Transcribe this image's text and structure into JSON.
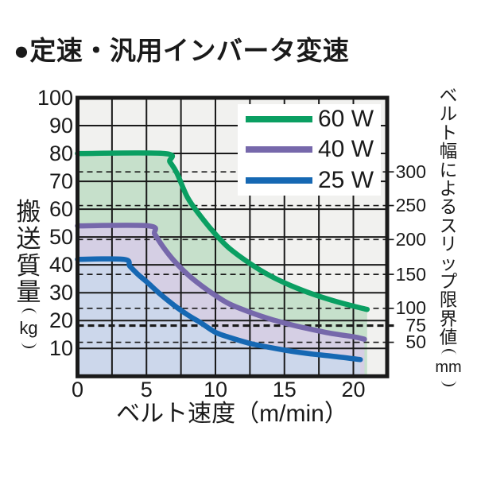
{
  "title": "●定速・汎用インバータ変速",
  "colors": {
    "text": "#1a1a1a",
    "grid": "#1a1a1a",
    "frame": "#1a1a1a",
    "plot_background": "#f1f1ef",
    "page_background": "#ffffff",
    "legend_background": "#ffffff"
  },
  "left_axis": {
    "title": "搬送質量",
    "unit": "kg"
  },
  "right_axis": {
    "title": "ベルト幅によるスリップ限界値",
    "unit": "mm"
  },
  "chart_data": {
    "type": "line",
    "title": "定速・汎用インバータ変速",
    "xlabel": "ベルト速度（m/min）",
    "ylabel_left": "搬送質量(kg)",
    "ylabel_right": "ベルト幅によるスリップ限界値(mm)",
    "xlim": [
      0,
      22.45
    ],
    "ylim": [
      0,
      100
    ],
    "x_ticks": [
      0,
      5,
      10,
      15,
      20
    ],
    "y_ticks_left": [
      100,
      90,
      80,
      70,
      60,
      50,
      40,
      30,
      20,
      10
    ],
    "grid": {
      "on": true,
      "x_step": 2.5,
      "y_step": 10
    },
    "legend_position": "top-right",
    "right_axis_marks": [
      {
        "label": "300",
        "kg": 73.4,
        "bold": false
      },
      {
        "label": "250",
        "kg": 61.3,
        "bold": false
      },
      {
        "label": "200",
        "kg": 49.1,
        "bold": false
      },
      {
        "label": "150",
        "kg": 36.6,
        "bold": false
      },
      {
        "label": "100",
        "kg": 24.4,
        "bold": false
      },
      {
        "label": "75",
        "kg": 18.2,
        "bold": true
      },
      {
        "label": "50",
        "kg": 12.2,
        "bold": false
      }
    ],
    "series": [
      {
        "name": "60 W",
        "color": "#0a9f62",
        "fill": "#c6e0cb",
        "points": [
          [
            0,
            80
          ],
          [
            6.3,
            80
          ],
          [
            6.7,
            77
          ],
          [
            7.2,
            73
          ],
          [
            8,
            64
          ],
          [
            9,
            57
          ],
          [
            10,
            51
          ],
          [
            11,
            46
          ],
          [
            12.5,
            40.5
          ],
          [
            14,
            36
          ],
          [
            15.5,
            32.5
          ],
          [
            17,
            29.6
          ],
          [
            18.5,
            27.2
          ],
          [
            20,
            25.2
          ],
          [
            21,
            24
          ]
        ]
      },
      {
        "name": "40 W",
        "color": "#7668ab",
        "fill": "#d5cfe4",
        "points": [
          [
            0,
            54
          ],
          [
            5.15,
            54
          ],
          [
            5.6,
            51
          ],
          [
            6.2,
            46.5
          ],
          [
            7,
            41.5
          ],
          [
            8,
            36.5
          ],
          [
            9,
            32.5
          ],
          [
            10,
            29
          ],
          [
            11,
            26
          ],
          [
            12.5,
            23
          ],
          [
            14,
            20.5
          ],
          [
            15.5,
            18.5
          ],
          [
            17,
            16.8
          ],
          [
            18.5,
            15.3
          ],
          [
            20,
            14.2
          ],
          [
            20.8,
            13.3
          ]
        ]
      },
      {
        "name": "25 W",
        "color": "#1668b3",
        "fill": "#ccd7eb",
        "points": [
          [
            0,
            42
          ],
          [
            3.35,
            42
          ],
          [
            3.8,
            39.5
          ],
          [
            4.4,
            36.5
          ],
          [
            5,
            34
          ],
          [
            6,
            29.5
          ],
          [
            7,
            25.5
          ],
          [
            8,
            22
          ],
          [
            9,
            19
          ],
          [
            10,
            15.8
          ],
          [
            11,
            14
          ],
          [
            12.5,
            11.8
          ],
          [
            14,
            10.3
          ],
          [
            15.5,
            9
          ],
          [
            17,
            8
          ],
          [
            18.5,
            7.2
          ],
          [
            20.5,
            6
          ]
        ]
      }
    ]
  }
}
